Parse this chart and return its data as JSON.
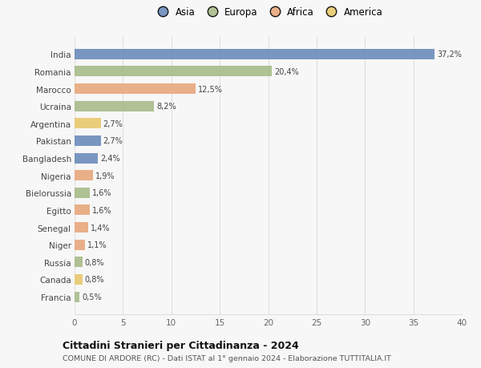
{
  "countries": [
    "India",
    "Romania",
    "Marocco",
    "Ucraina",
    "Argentina",
    "Pakistan",
    "Bangladesh",
    "Nigeria",
    "Bielorussia",
    "Egitto",
    "Senegal",
    "Niger",
    "Russia",
    "Canada",
    "Francia"
  ],
  "values": [
    37.2,
    20.4,
    12.5,
    8.2,
    2.7,
    2.7,
    2.4,
    1.9,
    1.6,
    1.6,
    1.4,
    1.1,
    0.8,
    0.8,
    0.5
  ],
  "labels": [
    "37,2%",
    "20,4%",
    "12,5%",
    "8,2%",
    "2,7%",
    "2,7%",
    "2,4%",
    "1,9%",
    "1,6%",
    "1,6%",
    "1,4%",
    "1,1%",
    "0,8%",
    "0,8%",
    "0,5%"
  ],
  "colors": [
    "#6b8cba",
    "#a8bc8a",
    "#e8a87c",
    "#a8bc8a",
    "#e8c96e",
    "#6b8cba",
    "#6b8cba",
    "#e8a87c",
    "#a8bc8a",
    "#e8a87c",
    "#e8a87c",
    "#e8a87c",
    "#a8bc8a",
    "#e8c96e",
    "#a8bc8a"
  ],
  "legend_labels": [
    "Asia",
    "Europa",
    "Africa",
    "America"
  ],
  "legend_colors": [
    "#6b8cba",
    "#a8bc8a",
    "#e8a87c",
    "#e8c96e"
  ],
  "title": "Cittadini Stranieri per Cittadinanza - 2024",
  "subtitle": "COMUNE DI ARDORE (RC) - Dati ISTAT al 1° gennaio 2024 - Elaborazione TUTTITALIA.IT",
  "xlim": [
    0,
    40
  ],
  "xticks": [
    0,
    5,
    10,
    15,
    20,
    25,
    30,
    35,
    40
  ],
  "background_color": "#f7f7f7",
  "grid_color": "#e0e0e0",
  "bar_height": 0.6
}
